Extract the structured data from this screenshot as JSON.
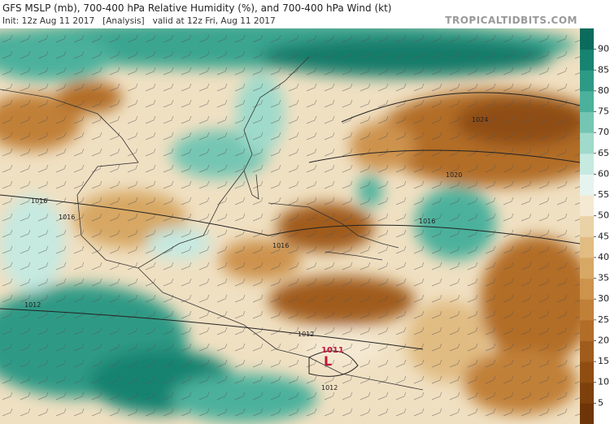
{
  "header": {
    "title": "GFS MSLP (mb), 700-400 hPa Relative Humidity (%), and 700-400 hPa Wind (kt)",
    "init": "Init: 12z Aug 11 2017   [Analysis]   valid at 12z Fri, Aug 11 2017",
    "source": "TROPICALTIDBITS.COM"
  },
  "colorbar": {
    "lim": [
      0,
      95
    ],
    "ticks": [
      5,
      10,
      15,
      20,
      25,
      30,
      35,
      40,
      45,
      50,
      55,
      60,
      65,
      70,
      75,
      80,
      85,
      90
    ],
    "colors": [
      "#6e3508",
      "#7e400c",
      "#8f4d12",
      "#a05c1c",
      "#b26d28",
      "#c18037",
      "#cd934d",
      "#d7a764",
      "#e1bc82",
      "#ebd2a6",
      "#f5e9d3",
      "#e6f4f0",
      "#c6e9e0",
      "#9fdaca",
      "#74c6b3",
      "#4cb19c",
      "#2d9a85",
      "#188371",
      "#0b6b5d"
    ]
  },
  "isobar_labels": [
    "1024",
    "1020",
    "1016",
    "1016",
    "1016",
    "1016",
    "1012",
    "1012",
    "1012"
  ],
  "low": {
    "symbol": "L",
    "pressure": "1011"
  }
}
